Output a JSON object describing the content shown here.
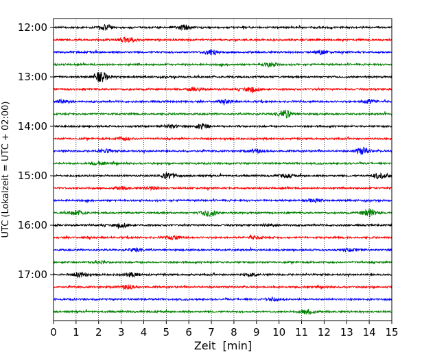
{
  "chart_data": {
    "type": "line",
    "xlabel": "Zeit  [min]",
    "ylabel": "UTC (Lokalzeit = UTC + 02:00)",
    "xlim": [
      0,
      15
    ],
    "x_ticks": [
      "0",
      "1",
      "2",
      "3",
      "4",
      "5",
      "6",
      "7",
      "8",
      "9",
      "10",
      "11",
      "12",
      "13",
      "14",
      "15"
    ],
    "y_tick_labels": [
      "12:00",
      "13:00",
      "14:00",
      "15:00",
      "16:00",
      "17:00"
    ],
    "grid": "vertical dotted at each minute",
    "series_colors": [
      "#000000",
      "#ff0000",
      "#0000ff",
      "#008000"
    ],
    "traces": [
      {
        "time": "12:00",
        "color": "#000000",
        "events": [
          {
            "t": 2.3,
            "amp": 0.5
          },
          {
            "t": 5.8,
            "amp": 0.45
          }
        ]
      },
      {
        "time": "12:15",
        "color": "#ff0000",
        "events": [
          {
            "t": 3.3,
            "amp": 0.6
          }
        ]
      },
      {
        "time": "12:30",
        "color": "#0000ff",
        "events": [
          {
            "t": 7.0,
            "amp": 0.6
          },
          {
            "t": 11.9,
            "amp": 0.4
          }
        ]
      },
      {
        "time": "12:45",
        "color": "#008000",
        "events": [
          {
            "t": 9.6,
            "amp": 0.4
          }
        ]
      },
      {
        "time": "13:00",
        "color": "#000000",
        "events": [
          {
            "t": 2.1,
            "amp": 1.0
          }
        ]
      },
      {
        "time": "13:15",
        "color": "#ff0000",
        "events": [
          {
            "t": 6.3,
            "amp": 0.35
          },
          {
            "t": 8.8,
            "amp": 0.5
          }
        ]
      },
      {
        "time": "13:30",
        "color": "#0000ff",
        "events": [
          {
            "t": 0.4,
            "amp": 0.4
          },
          {
            "t": 7.6,
            "amp": 0.3
          },
          {
            "t": 14.0,
            "amp": 0.4
          }
        ]
      },
      {
        "time": "13:45",
        "color": "#008000",
        "events": [
          {
            "t": 10.3,
            "amp": 0.7
          }
        ]
      },
      {
        "time": "14:00",
        "color": "#000000",
        "events": [
          {
            "t": 5.2,
            "amp": 0.3
          },
          {
            "t": 6.6,
            "amp": 0.55
          }
        ]
      },
      {
        "time": "14:15",
        "color": "#ff0000",
        "events": [
          {
            "t": 3.1,
            "amp": 0.3
          }
        ]
      },
      {
        "time": "14:30",
        "color": "#0000ff",
        "events": [
          {
            "t": 2.3,
            "amp": 0.3
          },
          {
            "t": 9.0,
            "amp": 0.3
          },
          {
            "t": 13.7,
            "amp": 0.7
          }
        ]
      },
      {
        "time": "14:45",
        "color": "#008000",
        "events": [
          {
            "t": 2.0,
            "amp": 0.25
          }
        ]
      },
      {
        "time": "15:00",
        "color": "#000000",
        "events": [
          {
            "t": 5.1,
            "amp": 0.6
          },
          {
            "t": 10.3,
            "amp": 0.3
          },
          {
            "t": 14.5,
            "amp": 0.6
          }
        ]
      },
      {
        "time": "15:15",
        "color": "#ff0000",
        "events": [
          {
            "t": 3.0,
            "amp": 0.3
          },
          {
            "t": 4.4,
            "amp": 0.3
          }
        ]
      },
      {
        "time": "15:30",
        "color": "#0000ff",
        "events": [
          {
            "t": 11.6,
            "amp": 0.3
          }
        ]
      },
      {
        "time": "15:45",
        "color": "#008000",
        "events": [
          {
            "t": 1.0,
            "amp": 0.5
          },
          {
            "t": 6.9,
            "amp": 0.75
          },
          {
            "t": 14.0,
            "amp": 0.8
          }
        ]
      },
      {
        "time": "16:00",
        "color": "#000000",
        "events": [
          {
            "t": 3.0,
            "amp": 0.4
          },
          {
            "t": 9.6,
            "amp": 0.25
          }
        ]
      },
      {
        "time": "16:15",
        "color": "#ff0000",
        "events": [
          {
            "t": 5.3,
            "amp": 0.35
          },
          {
            "t": 9.0,
            "amp": 0.3
          }
        ]
      },
      {
        "time": "16:30",
        "color": "#0000ff",
        "events": [
          {
            "t": 3.6,
            "amp": 0.25
          },
          {
            "t": 13.2,
            "amp": 0.25
          }
        ]
      },
      {
        "time": "16:45",
        "color": "#008000",
        "events": [
          {
            "t": 2.0,
            "amp": 0.2
          }
        ]
      },
      {
        "time": "17:00",
        "color": "#000000",
        "events": [
          {
            "t": 1.2,
            "amp": 0.5
          },
          {
            "t": 3.5,
            "amp": 0.35
          },
          {
            "t": 8.8,
            "amp": 0.3
          }
        ]
      },
      {
        "time": "17:15",
        "color": "#ff0000",
        "events": [
          {
            "t": 3.3,
            "amp": 0.4
          }
        ]
      },
      {
        "time": "17:30",
        "color": "#0000ff",
        "events": [
          {
            "t": 9.7,
            "amp": 0.3
          }
        ]
      },
      {
        "time": "17:45",
        "color": "#008000",
        "events": [
          {
            "t": 11.3,
            "amp": 0.45
          }
        ]
      }
    ]
  }
}
